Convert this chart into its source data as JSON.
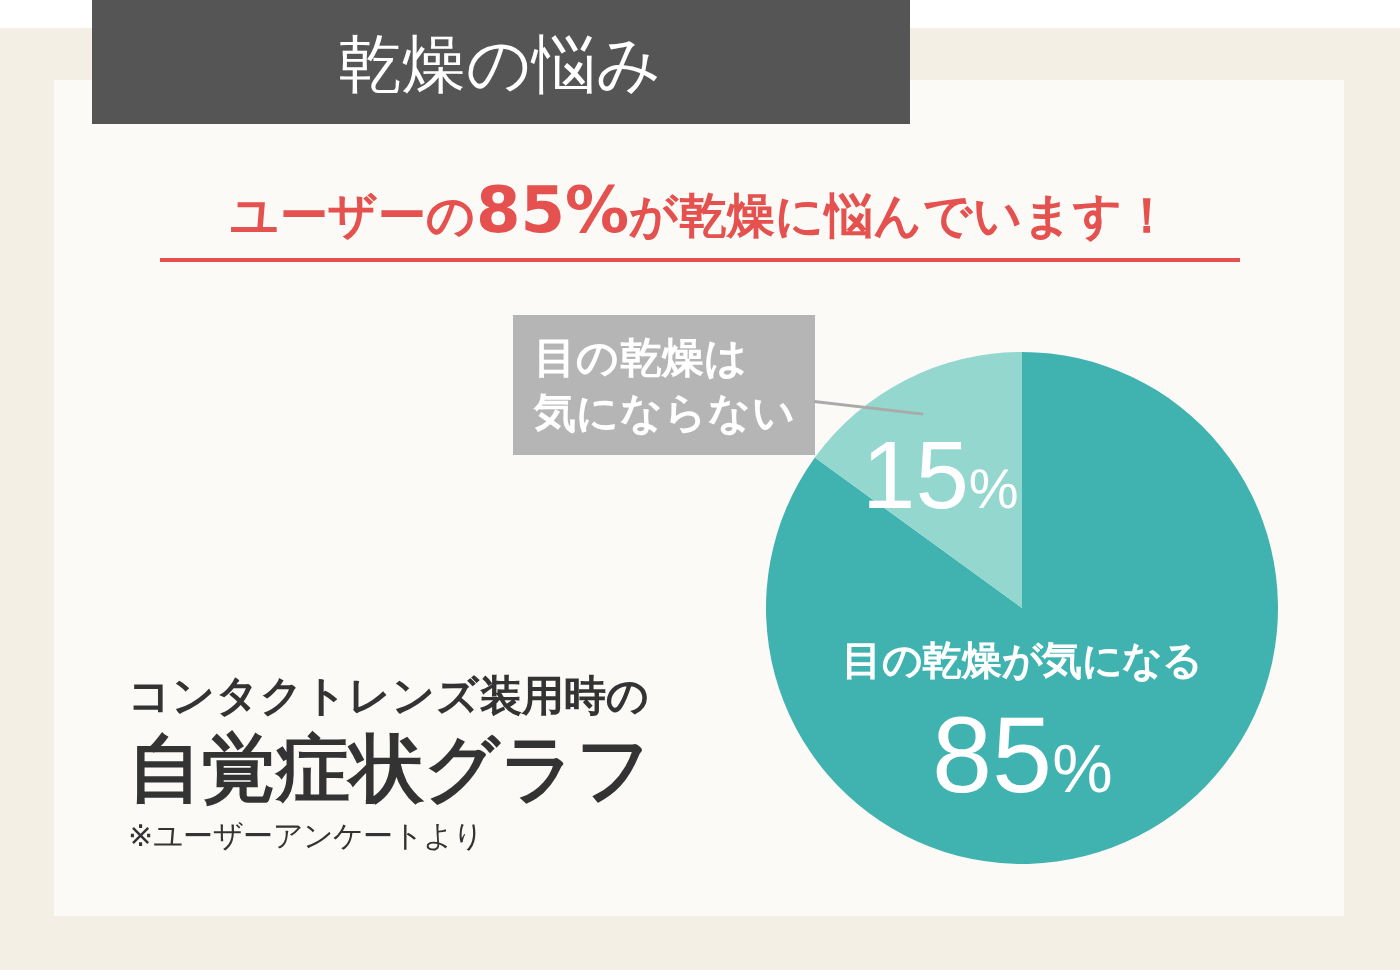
{
  "chart_data": {
    "type": "pie",
    "title": "乾燥の悩み",
    "subtitle": "ユーザーの85%が乾燥に悩んでいます！",
    "categories": [
      "目の乾燥が気になる",
      "目の乾燥は気にならない"
    ],
    "values": [
      85,
      15
    ],
    "value_labels": [
      "85%",
      "15%"
    ],
    "colors": [
      "#40b3b0",
      "#93d7cf"
    ],
    "annotations": [
      "コンタクトレンズ装用時の",
      "自覚症状グラフ",
      "※ユーザーアンケートより"
    ]
  }
}
